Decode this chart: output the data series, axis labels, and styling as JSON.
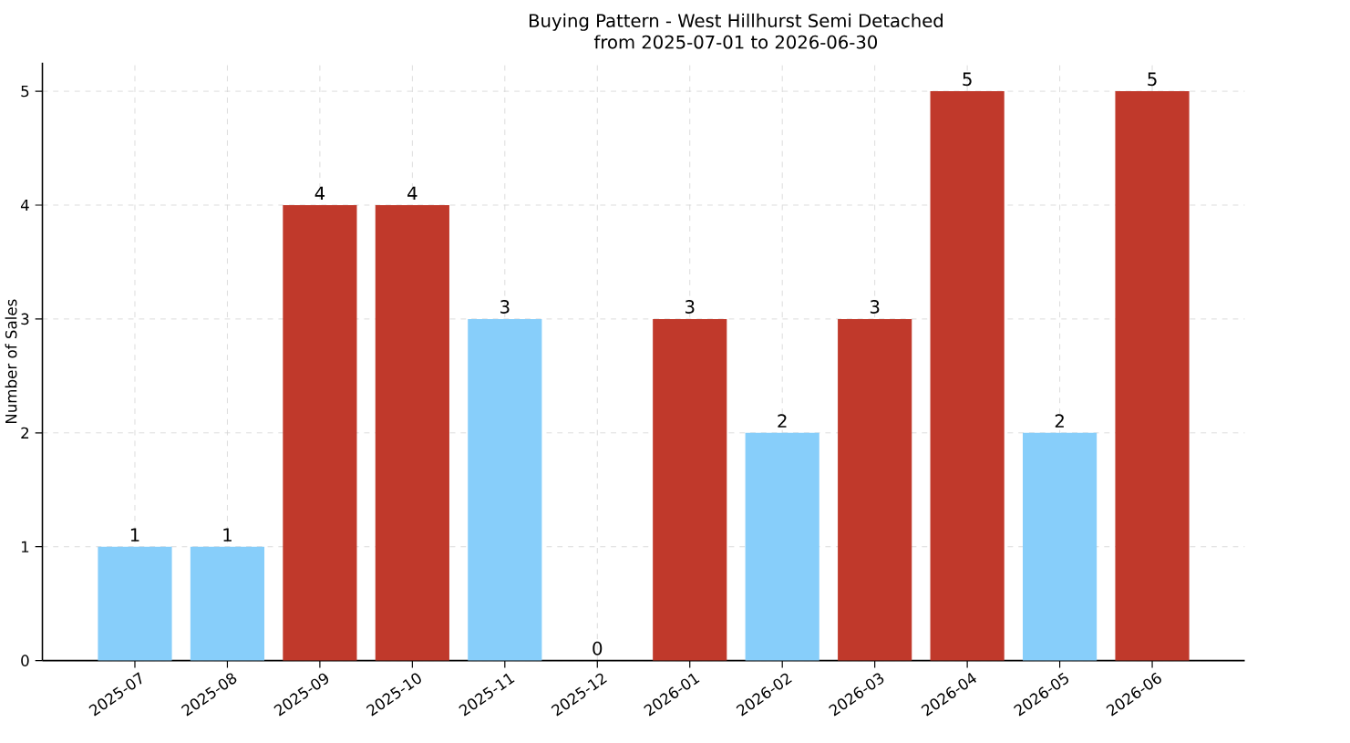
{
  "chart_data": {
    "type": "bar",
    "title": "Buying Pattern - West Hillhurst Semi Detached",
    "subtitle": "from 2025-07-01 to 2026-06-30",
    "ylabel": "Number of Sales",
    "categories": [
      "2025-07",
      "2025-08",
      "2025-09",
      "2025-10",
      "2025-11",
      "2025-12",
      "2026-01",
      "2026-02",
      "2026-03",
      "2026-04",
      "2026-05",
      "2026-06"
    ],
    "values": [
      1,
      1,
      4,
      4,
      3,
      0,
      3,
      2,
      3,
      5,
      2,
      5
    ],
    "colors": [
      "#87cefa",
      "#87cefa",
      "#c0392b",
      "#c0392b",
      "#87cefa",
      "#87cefa",
      "#c0392b",
      "#87cefa",
      "#c0392b",
      "#c0392b",
      "#87cefa",
      "#c0392b"
    ],
    "ylim": [
      0,
      5.25
    ],
    "yticks": [
      0,
      1,
      2,
      3,
      4,
      5
    ],
    "grid": true,
    "data_labels": true
  }
}
